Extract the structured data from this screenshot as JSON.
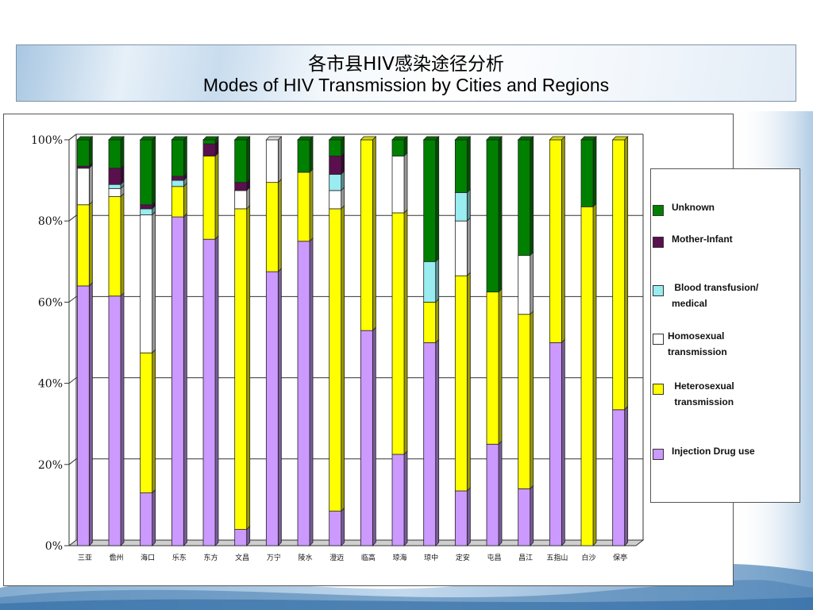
{
  "title": {
    "zh": "各市县HIV感染途径分析",
    "en": "Modes of HIV Transmission by Cities and Regions"
  },
  "colors": {
    "Unknown": "#008000",
    "Mother-Infant": "#5a0f4e",
    "Blood transfusion/medical": "#99ecf0",
    "Homosexual transmission": "#ffffff",
    "Heterosexual transmission": "#ffff00",
    "Injection Drug use": "#cc99ff"
  },
  "legend": [
    {
      "key": "Unknown",
      "lines": [
        "Unknown"
      ]
    },
    {
      "key": "Mother-Infant",
      "lines": [
        "Mother-Infant"
      ]
    },
    {
      "key": "Blood transfusion/medical",
      "lines": [
        " Blood transfusion/",
        "medical"
      ]
    },
    {
      "key": "Homosexual transmission",
      "lines": [
        "Homosexual",
        "transmission"
      ]
    },
    {
      "key": "Heterosexual transmission",
      "lines": [
        " Heterosexual",
        " transmission"
      ]
    },
    {
      "key": "Injection Drug use",
      "lines": [
        "Injection Drug use"
      ]
    }
  ],
  "chart_data": {
    "type": "bar",
    "stacked": true,
    "percent": true,
    "ylim": [
      0,
      100
    ],
    "yticks": [
      "0%",
      "20%",
      "40%",
      "60%",
      "80%",
      "100%"
    ],
    "grid": true,
    "legend_position": "right",
    "categories": [
      "三亚",
      "儋州",
      "海口",
      "乐东",
      "东方",
      "文昌",
      "万宁",
      "陵水",
      "澄迈",
      "临高",
      "琼海",
      "琼中",
      "定安",
      "屯昌",
      "昌江",
      "五指山",
      "白沙",
      "保亭"
    ],
    "series": [
      {
        "name": "Injection Drug use",
        "values": [
          64,
          61.5,
          13,
          81,
          75.5,
          4,
          67.5,
          75,
          8.5,
          53,
          22.5,
          50,
          13.5,
          25,
          14,
          50,
          0,
          33.5
        ]
      },
      {
        "name": "Heterosexual transmission",
        "values": [
          20,
          24.5,
          34.5,
          7.5,
          20.5,
          79,
          22,
          17,
          74.5,
          47,
          59.5,
          10,
          53,
          37.5,
          43,
          50,
          83.5,
          66.5
        ]
      },
      {
        "name": "Homosexual transmission",
        "values": [
          9,
          2,
          34,
          0,
          0,
          4.5,
          10.5,
          0,
          4.5,
          0,
          14,
          0,
          13.5,
          0,
          14.5,
          0,
          0,
          0
        ]
      },
      {
        "name": "Blood transfusion/medical",
        "values": [
          0,
          1,
          1.5,
          1.5,
          0,
          0,
          0,
          0,
          4,
          0,
          0,
          10,
          7,
          0,
          0,
          0,
          0,
          0
        ]
      },
      {
        "name": "Mother-Infant",
        "values": [
          0.5,
          4,
          1,
          1,
          3,
          2,
          0,
          0,
          4.5,
          0,
          0,
          0,
          0,
          0,
          0,
          0,
          0,
          0
        ]
      },
      {
        "name": "Unknown",
        "values": [
          6.5,
          7,
          16,
          9,
          1,
          10.5,
          0,
          8,
          4,
          0,
          4,
          30,
          13,
          37.5,
          28.5,
          0,
          16.5,
          0
        ]
      }
    ]
  }
}
